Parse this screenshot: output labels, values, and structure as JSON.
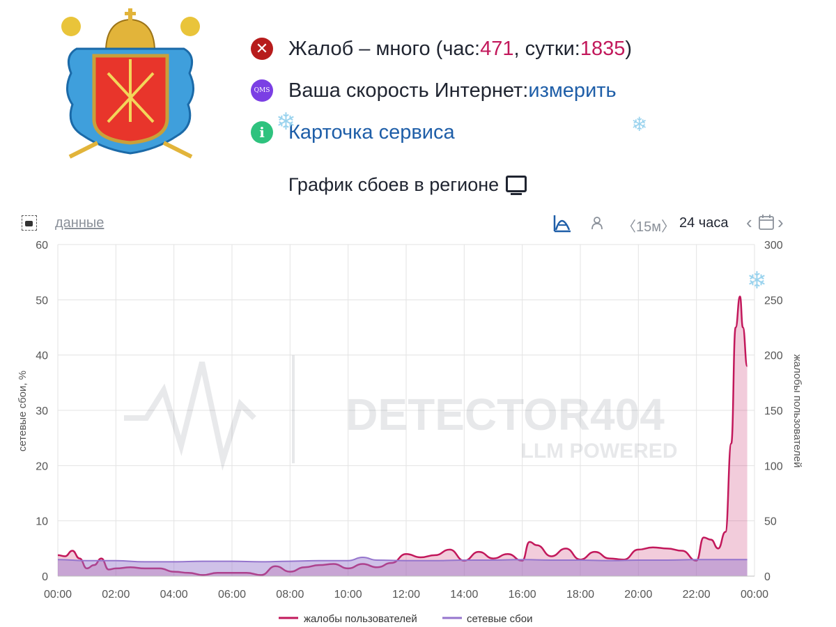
{
  "header": {
    "complaints": {
      "prefix": "Жалоб – много (час: ",
      "hour": "471",
      "mid": ", сутки: ",
      "day": "1835",
      "suffix": ")"
    },
    "speed": {
      "label": "Ваша скорость Интернет: ",
      "link": "измерить",
      "icon_text": "QMS"
    },
    "service_card": {
      "link": "Карточка сервиса",
      "icon_text": "i"
    },
    "error_icon_text": "✕"
  },
  "chart_title": "График сбоев в регионе",
  "toolbar": {
    "data_link": "данные",
    "interval": "〈15м〉",
    "range": "24 часа"
  },
  "colors": {
    "complaints": "#c2185b",
    "outages": "#9575cd",
    "link": "#1e5ea8"
  },
  "chart_data": {
    "type": "area",
    "x_ticks": [
      "00:00",
      "02:00",
      "04:00",
      "06:00",
      "08:00",
      "10:00",
      "12:00",
      "14:00",
      "16:00",
      "18:00",
      "20:00",
      "22:00",
      "00:00"
    ],
    "y_left": {
      "label": "сетевые сбои, %",
      "ylim": [
        0,
        60
      ],
      "ticks": [
        "0",
        "10",
        "20",
        "30",
        "40",
        "50",
        "60"
      ]
    },
    "y_right": {
      "label": "жалобы пользователей",
      "ylim": [
        0,
        300
      ],
      "ticks": [
        "0",
        "50",
        "100",
        "150",
        "200",
        "250",
        "300"
      ]
    },
    "grid": true,
    "legend_position": "bottom",
    "watermark": {
      "main": "DETECTOR404",
      "sub": "LLM POWERED"
    },
    "series": [
      {
        "name": "жалобы пользователей",
        "axis": "right",
        "x_hours": [
          0,
          0.25,
          0.5,
          0.75,
          1,
          1.25,
          1.5,
          1.75,
          2,
          2.5,
          3,
          3.5,
          4,
          4.5,
          5,
          5.5,
          6,
          6.5,
          7,
          7.5,
          8,
          8.5,
          9,
          9.5,
          10,
          10.5,
          11,
          11.5,
          12,
          12.5,
          13,
          13.5,
          14,
          14.5,
          15,
          15.5,
          16,
          16.25,
          16.5,
          17,
          17.5,
          18,
          18.5,
          19,
          19.5,
          20,
          20.5,
          21,
          21.5,
          22,
          22.25,
          22.5,
          22.75,
          23,
          23.2,
          23.35,
          23.5,
          23.6,
          23.75
        ],
        "values": [
          19,
          18,
          23,
          16,
          7,
          10,
          16,
          6,
          7,
          8,
          7,
          7,
          4,
          3,
          1,
          3,
          3,
          3,
          1,
          9,
          4,
          8,
          10,
          11,
          7,
          11,
          8,
          12,
          20,
          17,
          19,
          24,
          14,
          22,
          16,
          20,
          14,
          31,
          28,
          18,
          25,
          15,
          22,
          16,
          15,
          24,
          26,
          25,
          23,
          14,
          35,
          33,
          25,
          40,
          120,
          225,
          253,
          225,
          190
        ]
      },
      {
        "name": "сетевые сбои",
        "axis": "left",
        "x_hours": [
          0,
          1,
          2,
          3,
          4,
          5,
          6,
          7,
          8,
          9,
          10,
          10.5,
          11,
          12,
          13,
          14,
          15,
          16,
          17,
          18,
          19,
          20,
          21,
          22,
          23,
          23.75
        ],
        "values": [
          3.0,
          2.8,
          2.8,
          2.6,
          2.6,
          2.7,
          2.7,
          2.6,
          2.7,
          2.8,
          2.8,
          3.4,
          2.9,
          2.8,
          2.8,
          2.9,
          2.9,
          3.0,
          2.9,
          2.9,
          2.8,
          2.9,
          2.9,
          3.0,
          3.0,
          3.0
        ]
      }
    ]
  }
}
